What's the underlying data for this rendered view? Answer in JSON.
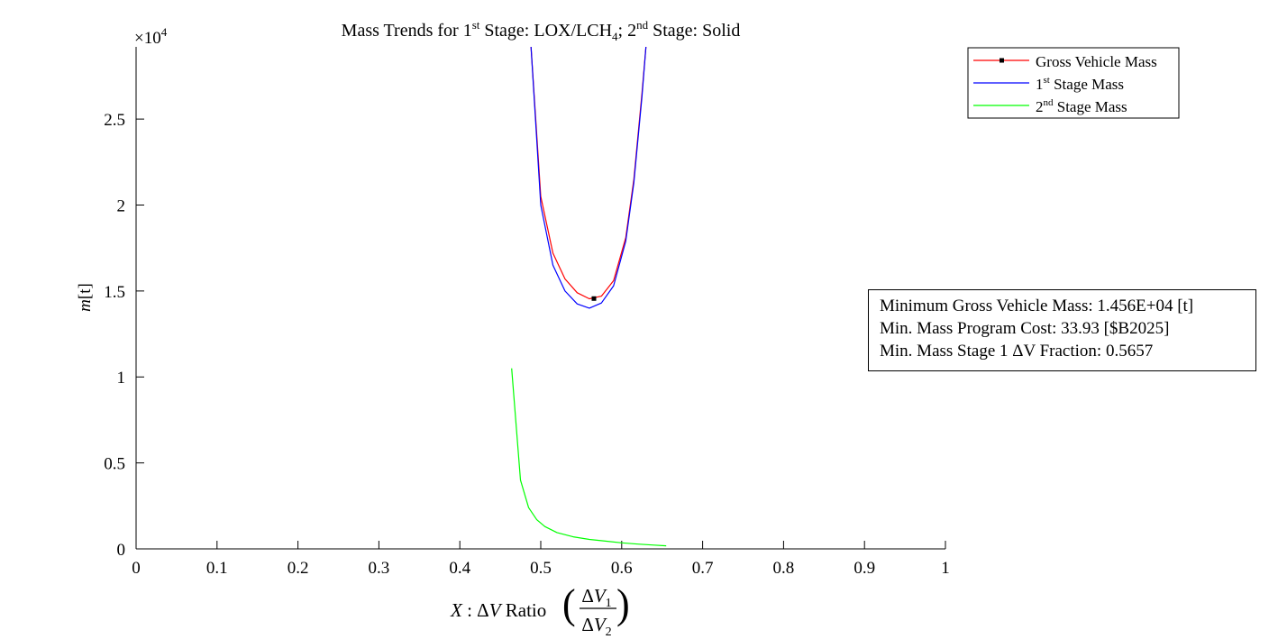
{
  "chart_data": {
    "type": "line",
    "title": {
      "prefix": "Mass Trends for 1",
      "sup1": "st",
      "mid1": " Stage: LOX/LCH",
      "sub": "4",
      "mid2": "; 2",
      "sup2": "nd",
      "suffix": " Stage: Solid"
    },
    "xlabel": {
      "var": "X",
      "sep": " : ",
      "delta": "Δ",
      "v": "V",
      "ratio": " Ratio",
      "num_v": "V",
      "num_sub": "1",
      "den_v": "V",
      "den_sub": "2"
    },
    "ylabel": {
      "var": "m",
      "unit": "[t]"
    },
    "y_exponent": {
      "base": "×10",
      "power": "4"
    },
    "xlim": [
      0,
      1
    ],
    "ylim": [
      0,
      2.92
    ],
    "xticks": [
      0,
      0.1,
      0.2,
      0.3,
      0.4,
      0.5,
      0.6,
      0.7,
      0.8,
      0.9,
      1
    ],
    "xtick_labels": [
      "0",
      "0.1",
      "0.2",
      "0.3",
      "0.4",
      "0.5",
      "0.6",
      "0.7",
      "0.8",
      "0.9",
      "1"
    ],
    "yticks": [
      0,
      0.5,
      1,
      1.5,
      2,
      2.5
    ],
    "ytick_labels": [
      "0",
      "0.5",
      "1",
      "1.5",
      "2",
      "2.5"
    ],
    "grid": false,
    "legend_placement": "top-right, outside plot area",
    "series": [
      {
        "name": "Gross Vehicle Mass",
        "legend_parts": {
          "text": "Gross Vehicle Mass"
        },
        "color": "#ff0000",
        "x": [
          0.488,
          0.5,
          0.515,
          0.53,
          0.545,
          0.56,
          0.575,
          0.59,
          0.605,
          0.615,
          0.625,
          0.63
        ],
        "y": [
          2.92,
          2.05,
          1.72,
          1.57,
          1.49,
          1.455,
          1.47,
          1.56,
          1.81,
          2.15,
          2.65,
          2.92
        ]
      },
      {
        "name": "1st Stage Mass",
        "legend_parts": {
          "pre": "1",
          "sup": "st",
          "post": " Stage Mass"
        },
        "color": "#0000ff",
        "x": [
          0.488,
          0.5,
          0.515,
          0.53,
          0.545,
          0.56,
          0.575,
          0.59,
          0.605,
          0.615,
          0.625,
          0.63
        ],
        "y": [
          2.92,
          2.0,
          1.65,
          1.5,
          1.425,
          1.4,
          1.43,
          1.53,
          1.79,
          2.13,
          2.63,
          2.92
        ]
      },
      {
        "name": "2nd Stage Mass",
        "legend_parts": {
          "pre": "2",
          "sup": "nd",
          "post": " Stage Mass"
        },
        "color": "#00ff00",
        "x": [
          0.464,
          0.475,
          0.485,
          0.495,
          0.505,
          0.52,
          0.54,
          0.56,
          0.58,
          0.6,
          0.62,
          0.64,
          0.655
        ],
        "y": [
          1.05,
          0.4,
          0.24,
          0.17,
          0.13,
          0.095,
          0.07,
          0.055,
          0.045,
          0.035,
          0.028,
          0.022,
          0.018
        ]
      }
    ],
    "min_marker": {
      "x": 0.5657,
      "y": 1.456
    },
    "annotations": [
      "Minimum Gross Vehicle Mass: 1.456E+04 [t]",
      "Min. Mass Program Cost: 33.93 [$B2025]",
      "Min. Mass Stage 1 ΔV Fraction: 0.5657"
    ]
  }
}
